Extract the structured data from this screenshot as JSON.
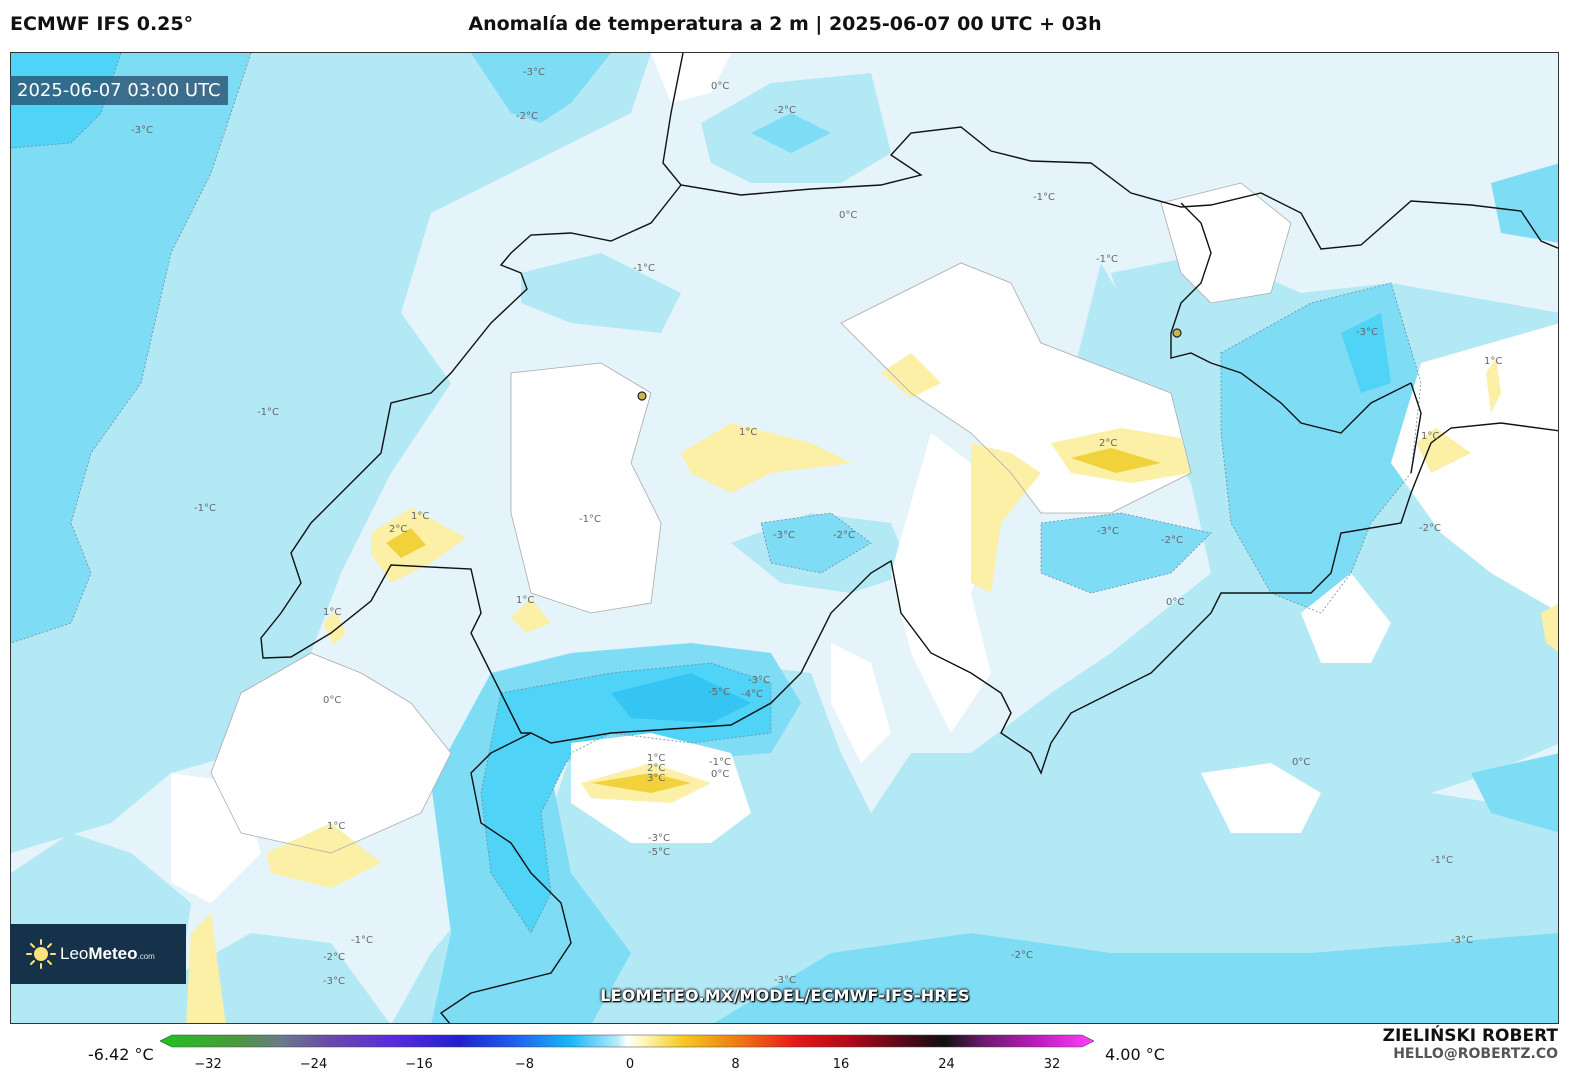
{
  "header": {
    "model": "ECMWF IFS 0.25°",
    "title": "Anomalía de temperatura a 2 m | 2025-06-07 00 UTC + 03h"
  },
  "map": {
    "timestamp": "2025-06-07 03:00 UTC",
    "contour_labels": [
      "-3°C",
      "-2°C",
      "-1°C",
      "0°C",
      "1°C",
      "2°C",
      "3°C",
      "-4°C",
      "-5°C"
    ],
    "watermark": "LEOMETEO.MX/MODEL/ECMWF-IFS-HRES"
  },
  "logo": {
    "brand_light": "Leo",
    "brand_bold": "Meteo",
    "suffix": ".com",
    "icon": "sun-icon"
  },
  "colorbar": {
    "min_label": "-6.42 °C",
    "max_label": "4.00 °C",
    "ticks": [
      "−32",
      "−24",
      "−16",
      "−8",
      "0",
      "8",
      "16",
      "24",
      "32"
    ],
    "range": [
      -32,
      32
    ]
  },
  "author": {
    "name": "ZIELIŃSKI ROBERT",
    "email": "HELLO@ROBERTZ.CO"
  },
  "colors": {
    "deep_blue": "#4fd3f7",
    "mid_blue": "#7fdcf5",
    "light_blue": "#b3e8f5",
    "pale_blue": "#e4f4fa",
    "white": "#ffffff",
    "yellow": "#fbf0a6",
    "gold": "#f1d23a"
  }
}
